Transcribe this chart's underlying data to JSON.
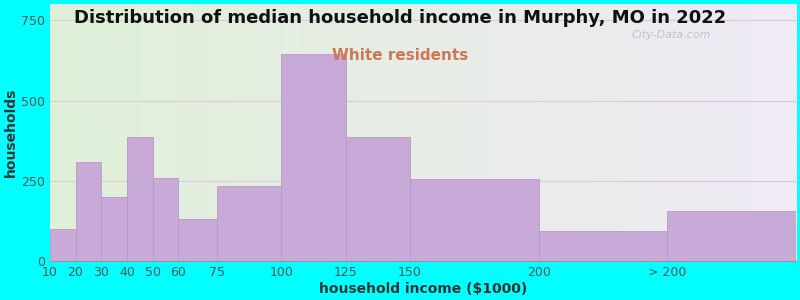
{
  "title": "Distribution of median household income in Murphy, MO in 2022",
  "subtitle": "White residents",
  "xlabel": "household income ($1000)",
  "ylabel": "households",
  "background_color": "#00FFFF",
  "plot_bg_gradient_left": "#dff0d8",
  "plot_bg_gradient_right": "#f0eaf5",
  "bar_color": "#c8aad8",
  "bar_edge_color": "#b898c8",
  "subtitle_color": "#cc7755",
  "title_color": "#111111",
  "axis_label_color": "#333333",
  "tick_color": "#555555",
  "bin_edges": [
    10,
    20,
    30,
    40,
    50,
    60,
    75,
    100,
    125,
    150,
    200,
    250,
    300
  ],
  "bin_labels": [
    "10",
    "20",
    "30",
    "40",
    "50",
    "60",
    "75",
    "100",
    "125",
    "150",
    "200",
    "> 200"
  ],
  "values": [
    100,
    310,
    200,
    385,
    260,
    130,
    235,
    645,
    385,
    255,
    95,
    155
  ],
  "ylim": [
    0,
    800
  ],
  "yticks": [
    0,
    250,
    500,
    750
  ],
  "title_fontsize": 13,
  "subtitle_fontsize": 11,
  "axis_label_fontsize": 10,
  "tick_fontsize": 9,
  "watermark": "City-Data.com",
  "watermark_color": "#aabbcc"
}
